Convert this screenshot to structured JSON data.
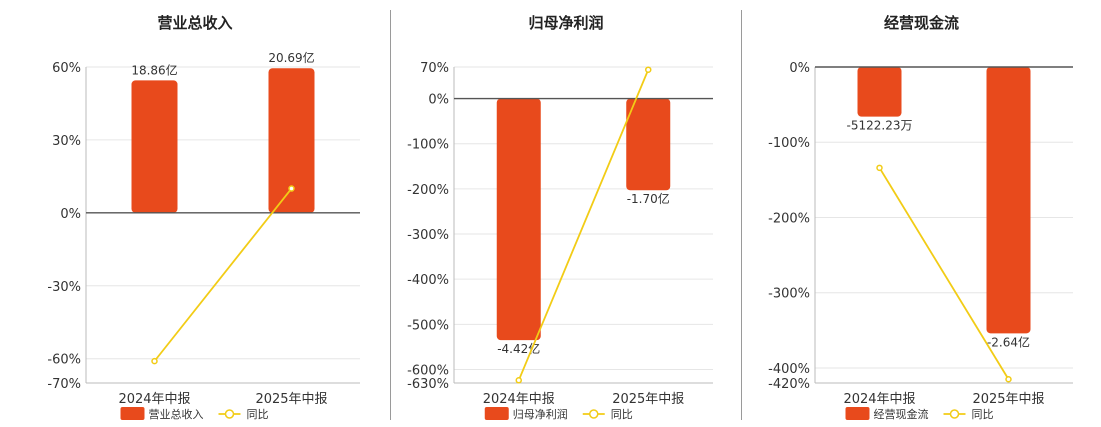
{
  "colors": {
    "bar": "#e84a1c",
    "line": "#f2cc16",
    "axis": "#555555",
    "grid": "#e6e6e6",
    "text": "#333333"
  },
  "chart_data": [
    {
      "type": "bar",
      "title": "营业总收入",
      "categories": [
        "2024年中报",
        "2025年中报"
      ],
      "ylim": [
        -70,
        60
      ],
      "yticks": [
        60,
        30,
        0,
        -30,
        -60,
        -70
      ],
      "ytick_labels": [
        "60%",
        "30%",
        "0%",
        "-30%",
        "-60%",
        "-70%"
      ],
      "bar_values": [
        54.5,
        59.5
      ],
      "bar_labels": [
        "18.86亿",
        "20.69亿"
      ],
      "line_values": [
        -61,
        10
      ],
      "legend": [
        "营业总收入",
        "同比"
      ]
    },
    {
      "type": "bar",
      "title": "归母净利润",
      "categories": [
        "2024年中报",
        "2025年中报"
      ],
      "ylim": [
        -630,
        70
      ],
      "yticks": [
        70,
        0,
        -100,
        -200,
        -300,
        -400,
        -500,
        -600,
        -630
      ],
      "ytick_labels": [
        "70%",
        "0%",
        "-100%",
        "-200%",
        "-300%",
        "-400%",
        "-500%",
        "-600%",
        "-630%"
      ],
      "bar_values": [
        -535,
        -203
      ],
      "bar_labels": [
        "-4.42亿",
        "-1.70亿"
      ],
      "line_values": [
        -624,
        64
      ],
      "legend": [
        "归母净利润",
        "同比"
      ]
    },
    {
      "type": "bar",
      "title": "经营现金流",
      "categories": [
        "2024年中报",
        "2025年中报"
      ],
      "ylim": [
        -420,
        0
      ],
      "yticks": [
        0,
        -100,
        -200,
        -300,
        -400,
        -420
      ],
      "ytick_labels": [
        "0%",
        "-100%",
        "-200%",
        "-300%",
        "-400%",
        "-420%"
      ],
      "bar_values": [
        -66,
        -354
      ],
      "bar_labels": [
        "-5122.23万",
        "-2.64亿"
      ],
      "line_values": [
        -134,
        -415
      ],
      "legend": [
        "经营现金流",
        "同比"
      ]
    }
  ]
}
